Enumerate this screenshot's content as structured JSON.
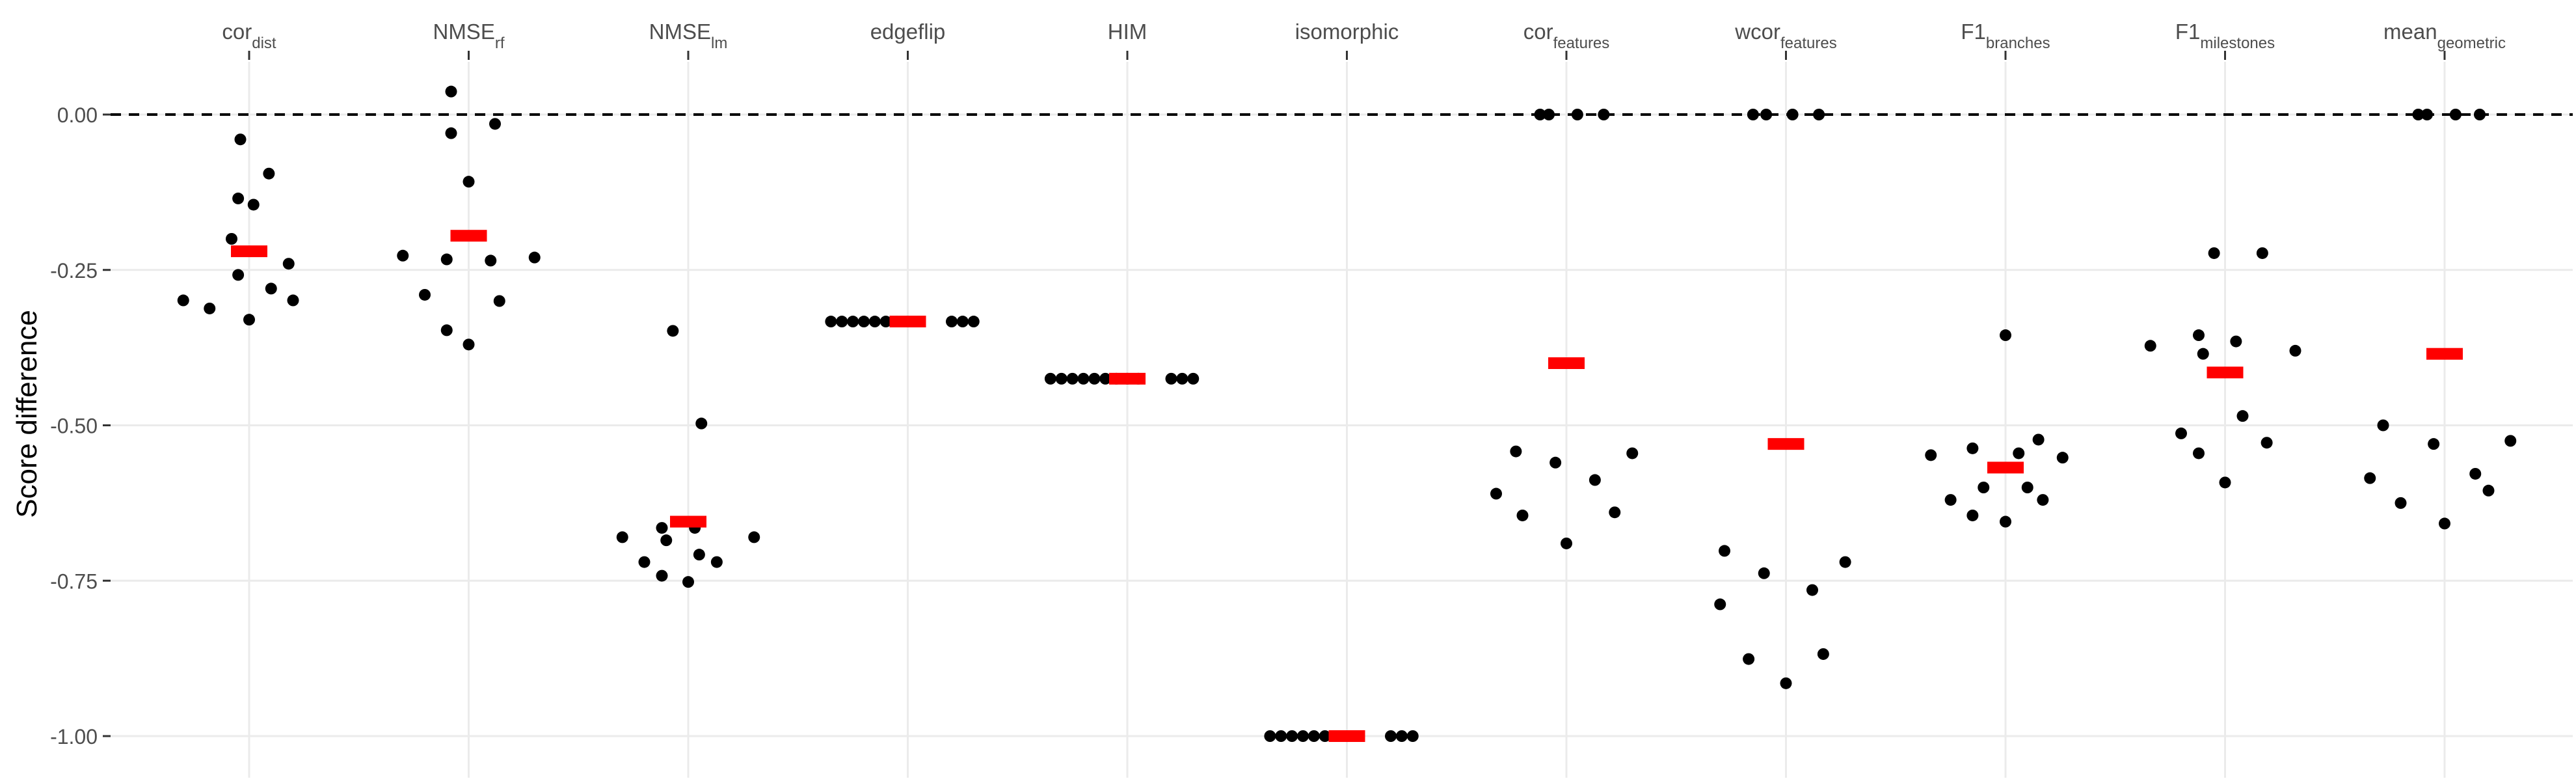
{
  "chart_data": {
    "type": "scatter",
    "title": "",
    "xlabel": "",
    "ylabel": "Score difference",
    "ylim": [
      -1.05,
      0.12
    ],
    "y_ticks": [
      0.0,
      -0.25,
      -0.5,
      -0.75,
      -1.0
    ],
    "y_tick_labels": [
      "0.00",
      "-0.25",
      "-0.50",
      "-0.75",
      "-1.00"
    ],
    "x_axis_position": "top",
    "grid": true,
    "reference_line": {
      "y": 0.0,
      "style": "dashed"
    },
    "colors": {
      "points": "#000000",
      "mean_marker": "#ff0000",
      "grid": "#ebebeb",
      "reference": "#000000"
    },
    "categories": [
      {
        "label": "cor",
        "sub": "dist"
      },
      {
        "label": "NMSE",
        "sub": "rf"
      },
      {
        "label": "NMSE",
        "sub": "lm"
      },
      {
        "label": "edgeflip",
        "sub": ""
      },
      {
        "label": "HIM",
        "sub": ""
      },
      {
        "label": "isomorphic",
        "sub": ""
      },
      {
        "label": "cor",
        "sub": "features"
      },
      {
        "label": "wcor",
        "sub": "features"
      },
      {
        "label": "F1",
        "sub": "branches"
      },
      {
        "label": "F1",
        "sub": "milestones"
      },
      {
        "label": "mean",
        "sub": "geometric"
      }
    ],
    "series": [
      {
        "means": [
          -0.22,
          -0.195,
          -0.655,
          -0.333,
          -0.425,
          -1.0,
          -0.4,
          -0.53,
          -0.568,
          -0.415,
          -0.385
        ]
      },
      {
        "points": [
          [
            [
              -0.3,
              -0.299
            ],
            [
              -0.18,
              -0.312
            ],
            [
              -0.08,
              -0.2
            ],
            [
              -0.05,
              -0.135
            ],
            [
              -0.05,
              -0.258
            ],
            [
              -0.04,
              -0.04
            ],
            [
              0.0,
              -0.33
            ],
            [
              0.02,
              -0.145
            ],
            [
              0.09,
              -0.095
            ],
            [
              0.1,
              -0.28
            ],
            [
              0.18,
              -0.24
            ],
            [
              0.2,
              -0.299
            ]
          ],
          [
            [
              -0.3,
              -0.227
            ],
            [
              -0.2,
              -0.29
            ],
            [
              -0.1,
              -0.233
            ],
            [
              -0.1,
              -0.347
            ],
            [
              -0.08,
              -0.03
            ],
            [
              -0.08,
              0.037
            ],
            [
              0.0,
              -0.108
            ],
            [
              0.0,
              -0.37
            ],
            [
              0.1,
              -0.235
            ],
            [
              0.12,
              -0.015
            ],
            [
              0.14,
              -0.3
            ],
            [
              0.3,
              -0.23
            ]
          ],
          [
            [
              -0.3,
              -0.68
            ],
            [
              -0.2,
              -0.72
            ],
            [
              -0.12,
              -0.742
            ],
            [
              -0.12,
              -0.665
            ],
            [
              -0.1,
              -0.685
            ],
            [
              -0.07,
              -0.348
            ],
            [
              0.0,
              -0.752
            ],
            [
              0.03,
              -0.665
            ],
            [
              0.05,
              -0.708
            ],
            [
              0.06,
              -0.497
            ],
            [
              0.13,
              -0.72
            ],
            [
              0.3,
              -0.68
            ]
          ],
          [
            [
              -0.35,
              -0.333
            ],
            [
              -0.3,
              -0.333
            ],
            [
              -0.25,
              -0.333
            ],
            [
              -0.2,
              -0.333
            ],
            [
              -0.15,
              -0.333
            ],
            [
              -0.1,
              -0.333
            ],
            [
              -0.05,
              -0.333
            ],
            [
              0.0,
              -0.333
            ],
            [
              0.05,
              -0.333
            ],
            [
              0.2,
              -0.333
            ],
            [
              0.25,
              -0.333
            ],
            [
              0.3,
              -0.333
            ]
          ],
          [
            [
              -0.35,
              -0.425
            ],
            [
              -0.3,
              -0.425
            ],
            [
              -0.25,
              -0.425
            ],
            [
              -0.2,
              -0.425
            ],
            [
              -0.15,
              -0.425
            ],
            [
              -0.1,
              -0.425
            ],
            [
              -0.05,
              -0.425
            ],
            [
              0.0,
              -0.425
            ],
            [
              0.05,
              -0.425
            ],
            [
              0.2,
              -0.425
            ],
            [
              0.25,
              -0.425
            ],
            [
              0.3,
              -0.425
            ]
          ],
          [
            [
              -0.35,
              -1.0
            ],
            [
              -0.3,
              -1.0
            ],
            [
              -0.25,
              -1.0
            ],
            [
              -0.2,
              -1.0
            ],
            [
              -0.15,
              -1.0
            ],
            [
              -0.1,
              -1.0
            ],
            [
              -0.05,
              -1.0
            ],
            [
              0.0,
              -1.0
            ],
            [
              0.05,
              -1.0
            ],
            [
              0.2,
              -1.0
            ],
            [
              0.25,
              -1.0
            ],
            [
              0.3,
              -1.0
            ]
          ],
          [
            [
              -0.32,
              -0.61
            ],
            [
              -0.2,
              -0.645
            ],
            [
              -0.23,
              -0.542
            ],
            [
              -0.12,
              0.0
            ],
            [
              -0.08,
              0.0
            ],
            [
              -0.05,
              -0.56
            ],
            [
              0.0,
              -0.69
            ],
            [
              0.05,
              0.0
            ],
            [
              0.13,
              -0.588
            ],
            [
              0.17,
              0.0
            ],
            [
              0.22,
              -0.64
            ],
            [
              0.3,
              -0.545
            ]
          ],
          [
            [
              -0.3,
              -0.788
            ],
            [
              -0.28,
              -0.702
            ],
            [
              -0.17,
              -0.876
            ],
            [
              -0.15,
              0.0
            ],
            [
              -0.1,
              -0.738
            ],
            [
              -0.09,
              0.0
            ],
            [
              0.0,
              -0.915
            ],
            [
              0.03,
              0.0
            ],
            [
              0.12,
              -0.765
            ],
            [
              0.15,
              0.0
            ],
            [
              0.17,
              -0.868
            ],
            [
              0.27,
              -0.72
            ]
          ],
          [
            [
              -0.34,
              -0.548
            ],
            [
              -0.25,
              -0.62
            ],
            [
              -0.15,
              -0.537
            ],
            [
              -0.15,
              -0.645
            ],
            [
              -0.1,
              -0.6
            ],
            [
              0.0,
              -0.355
            ],
            [
              0.0,
              -0.655
            ],
            [
              0.06,
              -0.545
            ],
            [
              0.1,
              -0.6
            ],
            [
              0.15,
              -0.523
            ],
            [
              0.17,
              -0.62
            ],
            [
              0.26,
              -0.552
            ]
          ],
          [
            [
              -0.34,
              -0.372
            ],
            [
              -0.2,
              -0.513
            ],
            [
              -0.12,
              -0.355
            ],
            [
              -0.12,
              -0.545
            ],
            [
              -0.1,
              -0.385
            ],
            [
              -0.05,
              -0.223
            ],
            [
              0.0,
              -0.592
            ],
            [
              0.05,
              -0.365
            ],
            [
              0.08,
              -0.485
            ],
            [
              0.17,
              -0.223
            ],
            [
              0.19,
              -0.528
            ],
            [
              0.32,
              -0.38
            ]
          ],
          [
            [
              -0.34,
              -0.585
            ],
            [
              -0.28,
              -0.5
            ],
            [
              -0.2,
              -0.625
            ],
            [
              -0.12,
              0.0
            ],
            [
              -0.08,
              0.0
            ],
            [
              -0.05,
              -0.53
            ],
            [
              0.0,
              -0.658
            ],
            [
              0.05,
              0.0
            ],
            [
              0.14,
              -0.578
            ],
            [
              0.16,
              0.0
            ],
            [
              0.2,
              -0.605
            ],
            [
              0.3,
              -0.525
            ]
          ]
        ]
      }
    ]
  }
}
